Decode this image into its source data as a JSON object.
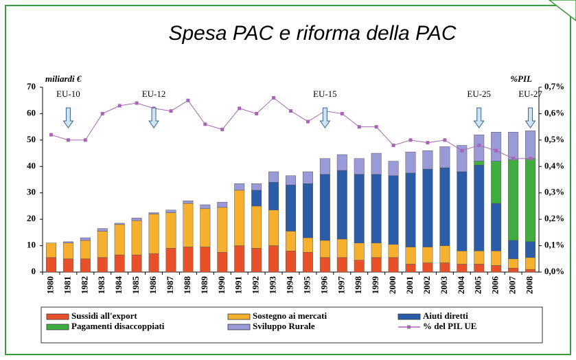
{
  "chart_data": {
    "type": "bar",
    "title": "Spesa PAC e riforma della PAC",
    "y_label": "miliardi €",
    "y2_label": "%PIL",
    "stacked": true,
    "legend": "bottom",
    "categories": [
      "1980",
      "1981",
      "1982",
      "1983",
      "1984",
      "1985",
      "1986",
      "1987",
      "1988",
      "1989",
      "1990",
      "1991",
      "1992",
      "1993",
      "1994",
      "1995",
      "1996",
      "1997",
      "1998",
      "1999",
      "2000",
      "2001",
      "2002",
      "2003",
      "2004",
      "2005",
      "2006",
      "2007",
      "2008"
    ],
    "series": [
      {
        "name": "Sussidi all'export",
        "color": "#e8502a",
        "values": [
          5.5,
          5,
          5,
          5.5,
          6.5,
          6.5,
          7,
          9,
          9.5,
          9.5,
          7.5,
          10,
          9,
          10,
          8,
          7.5,
          5.5,
          5.5,
          4.5,
          5.5,
          5.5,
          3,
          3.5,
          3.5,
          3,
          3,
          2.5,
          1.5,
          1
        ]
      },
      {
        "name": "Sostegno ai mercati",
        "color": "#f5b030",
        "values": [
          5.5,
          6,
          7,
          10,
          11.5,
          13,
          15,
          13.5,
          16.5,
          14.5,
          17,
          21,
          16,
          13.5,
          7.5,
          5.5,
          6.5,
          7,
          6.5,
          5.5,
          5,
          6.5,
          6,
          6.5,
          5,
          5,
          5.5,
          3.5,
          4.5
        ]
      },
      {
        "name": "Aiuti diretti",
        "color": "#2a5ca8",
        "values": [
          0,
          0,
          0,
          0,
          0,
          0,
          0,
          0,
          0,
          0,
          0,
          0,
          6,
          10.5,
          17.5,
          20.5,
          25,
          26,
          26,
          26,
          26,
          28,
          29.5,
          29.5,
          30,
          32.5,
          18,
          7,
          6
        ]
      },
      {
        "name": "Pagamenti disaccoppiati",
        "color": "#3fae3f",
        "values": [
          0,
          0,
          0,
          0,
          0,
          0,
          0,
          0,
          0,
          0,
          0,
          0,
          0,
          0,
          0,
          0,
          0,
          0,
          0,
          0,
          0,
          0,
          0,
          0,
          0,
          1.5,
          16,
          30.5,
          31.5
        ]
      },
      {
        "name": "Sviluppo Rurale",
        "color": "#9a9ad8",
        "values": [
          0,
          0.5,
          1,
          1,
          0.5,
          1,
          0.5,
          1,
          1,
          1.5,
          2,
          2.5,
          2.5,
          4,
          3.5,
          4.5,
          6,
          6,
          6,
          8,
          5.5,
          8,
          7,
          8,
          10,
          10,
          11,
          10.5,
          10.5
        ]
      },
      {
        "name": "% del PIL UE",
        "type": "line",
        "axis": "y2",
        "color": "#a865b5",
        "values": [
          0.52,
          0.5,
          0.5,
          0.6,
          0.63,
          0.64,
          0.62,
          0.61,
          0.65,
          0.56,
          0.54,
          0.62,
          0.6,
          0.66,
          0.61,
          0.57,
          0.61,
          0.6,
          0.55,
          0.55,
          0.48,
          0.5,
          0.49,
          0.5,
          0.46,
          0.48,
          0.46,
          0.43,
          0.43
        ]
      }
    ],
    "ylim": [
      0,
      70
    ],
    "yticks": [
      0,
      10,
      20,
      30,
      40,
      50,
      60,
      70
    ],
    "y2lim": [
      0,
      0.7
    ],
    "y2ticks": [
      {
        "value": 0,
        "label": "0,0%"
      },
      {
        "value": 0.1,
        "label": "0,1%"
      },
      {
        "value": 0.2,
        "label": "0,2%"
      },
      {
        "value": 0.3,
        "label": "0,3%"
      },
      {
        "value": 0.4,
        "label": "0,4%"
      },
      {
        "value": 0.5,
        "label": "0,5%"
      },
      {
        "value": 0.6,
        "label": "0,6%"
      },
      {
        "value": 0.7,
        "label": "0,7%"
      }
    ],
    "annotations": [
      {
        "text": "EU-10",
        "x": "1981"
      },
      {
        "text": "EU-12",
        "x": "1986"
      },
      {
        "text": "EU-15",
        "x": "1996"
      },
      {
        "text": "EU-25",
        "x": "2005"
      },
      {
        "text": "EU-27",
        "x": "2008"
      }
    ]
  }
}
